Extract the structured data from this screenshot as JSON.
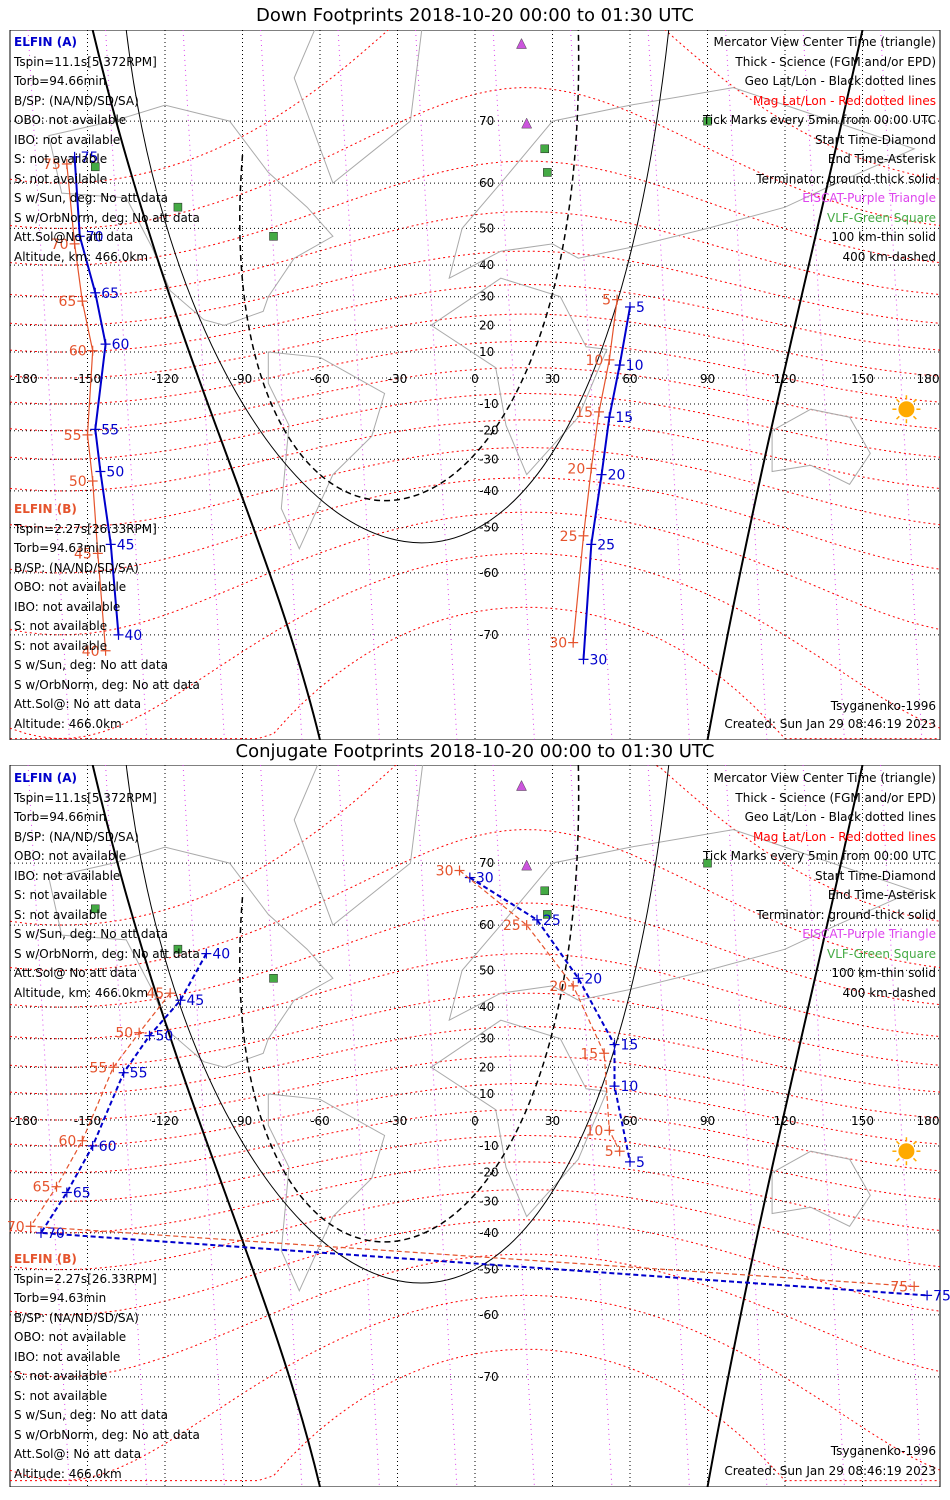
{
  "panels": [
    {
      "title": "Down Footprints 2018-10-20 00:00 to 01:30 UTC",
      "elfin_a": {
        "header": "ELFIN (A)",
        "lines": [
          "Tspin=11.1s[5.372RPM]",
          "Torb=94.66min",
          "B/SP: (NA/ND/SD/SA)",
          "OBO: not available",
          "IBO: not available",
          "S: not available",
          "S: not available",
          "S w/Sun, deg: No att data",
          "S w/OrbNorm, deg: No att data",
          "Att.Sol@No att data",
          "Altitude, km: 466.0km"
        ]
      },
      "elfin_b": {
        "header": "ELFIN (B)",
        "lines": [
          "Tspin=2.27s[26.33RPM]",
          "Torb=94.63min",
          "B/SP: (NA/ND/SD/SA)",
          "OBO: not available",
          "IBO: not available",
          "S: not available",
          "S: not available",
          "S w/Sun, deg: No att data",
          "S w/OrbNorm, deg: No att data",
          "Att.Sol@: No att data",
          "Altitude: 466.0km"
        ]
      },
      "model": "Tsyganenko-1996",
      "created": "Created: Sun Jan 29 08:46:19 2023"
    },
    {
      "title": "Conjugate Footprints 2018-10-20 00:00 to 01:30 UTC",
      "elfin_a": {
        "header": "ELFIN (A)",
        "lines": [
          "Tspin=11.1s[5.372RPM]",
          "Torb=94.66min",
          "B/SP: (NA/ND/SD/SA)",
          "OBO: not available",
          "IBO: not available",
          "S: not available",
          "S: not available",
          "S w/Sun, deg: No att data",
          "S w/OrbNorm, deg: No att data",
          "Att.Sol@ No att data",
          "Altitude, km: 466.0km"
        ]
      },
      "elfin_b": {
        "header": "ELFIN (B)",
        "lines": [
          "Tspin=2.27s[26.33RPM]",
          "Torb=94.63min",
          "B/SP: (NA/ND/SD/SA)",
          "OBO: not available",
          "IBO: not available",
          "S: not available",
          "S: not available",
          "S w/Sun, deg: No att data",
          "S w/OrbNorm, deg: No att data",
          "Att.Sol@: No att data",
          "Altitude: 466.0km"
        ]
      },
      "model": "Tsyganenko-1996",
      "created": "Created: Sun Jan 29 08:46:19 2023"
    }
  ],
  "legend": [
    {
      "text": "Mercator View Center Time (triangle)",
      "color": "#000000"
    },
    {
      "text": "Thick - Science (FGM and/or EPD)",
      "color": "#000000"
    },
    {
      "text": "Geo Lat/Lon - Black dotted lines",
      "color": "#000000"
    },
    {
      "text": "Mag Lat/Lon - Red dotted lines",
      "color": "#ff0000"
    },
    {
      "text": "Tick Marks every 5min from 00:00 UTC",
      "color": "#000000"
    },
    {
      "text": "Start Time-Diamond",
      "color": "#000000"
    },
    {
      "text": "End Time-Asterisk",
      "color": "#000000"
    },
    {
      "text": "Terminator: ground-thick solid",
      "color": "#000000"
    },
    {
      "text": "EISCAT-Purple Triangle",
      "color": "#dd44ee"
    },
    {
      "text": "VLF-Green Square",
      "color": "#44aa44"
    },
    {
      "text": "100 km-thin solid",
      "color": "#000000"
    },
    {
      "text": "400 km-dashed",
      "color": "#000000"
    }
  ],
  "colors": {
    "elfin_a": "#0000cc",
    "elfin_b": "#e5532c",
    "mag_grid": "#ff0000",
    "geo_grid": "#000000",
    "eiscat": "#cc55dd",
    "vlf": "#44aa44",
    "sun": "#ffaa00"
  },
  "map": {
    "lon_range": [
      -180,
      180
    ],
    "lon_ticks": [
      -180,
      -150,
      -120,
      -90,
      -60,
      -30,
      0,
      30,
      60,
      90,
      120,
      150,
      180
    ],
    "lon_tick_labels": [
      "-180",
      "-150",
      "-120",
      "-90",
      "-60",
      "-30",
      "0",
      "30",
      "60",
      "90",
      "120",
      "150",
      "180"
    ],
    "lat_ticks": [
      70,
      60,
      50,
      40,
      30,
      20,
      10,
      -10,
      -20,
      -30,
      -40,
      -50,
      -60,
      -70
    ],
    "lat_tick_labels": [
      "70",
      "60",
      "50",
      "40",
      "30",
      "20",
      "10",
      "-10",
      "-20",
      "-30",
      "-40",
      "-50",
      "-60",
      "-70"
    ],
    "projection": "mercator",
    "grid": true
  },
  "chart_data": [
    {
      "type": "scatter",
      "title": "Down Footprints 2018-10-20 00:00 to 01:30 UTC",
      "series": [
        {
          "name": "ELFIN (A)",
          "ticks_min": [
            75,
            70,
            65,
            60,
            55,
            50,
            45,
            40
          ],
          "lon": [
            -155,
            -153,
            -147,
            -143,
            -147,
            -145,
            -141,
            -138
          ],
          "lat": [
            64.7,
            48.0,
            31.3,
            13.0,
            -19.5,
            -34.0,
            -54.0,
            -70.0
          ],
          "ticks_min_2": [
            5,
            10,
            15,
            20,
            25,
            30
          ],
          "lon_2": [
            60.0,
            56.0,
            52.0,
            49.0,
            45.0,
            42.0
          ],
          "lat_2": [
            26.5,
            5.0,
            -15.0,
            -35.0,
            -54.0,
            -73.0
          ]
        },
        {
          "name": "ELFIN (B)",
          "ticks_min": [
            75,
            70,
            65,
            60,
            55,
            50,
            45,
            40
          ],
          "lon": [
            -158,
            -155,
            -152,
            -148,
            -150,
            -148,
            -146,
            -143
          ],
          "lat": [
            63.5,
            46.0,
            28.5,
            10.5,
            -21.5,
            -37.0,
            -56.0,
            -72.0
          ],
          "ticks_min_2": [
            5,
            10,
            15,
            20,
            25,
            30
          ],
          "lon_2": [
            55.0,
            52.0,
            48.0,
            45.0,
            42.0,
            38.0
          ],
          "lat_2": [
            29.0,
            7.0,
            -13.0,
            -33.0,
            -52.0,
            -71.0
          ]
        }
      ]
    },
    {
      "type": "scatter",
      "title": "Conjugate Footprints 2018-10-20 00:00 to 01:30 UTC",
      "series": [
        {
          "name": "ELFIN (A)",
          "ticks_min": [
            30,
            25,
            20,
            15,
            10,
            5
          ],
          "lon": [
            -2.0,
            24.0,
            40.0,
            54.0,
            54.0,
            60.0
          ],
          "lat": [
            68.0,
            61.0,
            48.0,
            28.0,
            13.0,
            -16.0
          ],
          "ticks_min_2": [
            40,
            45,
            50,
            55,
            60,
            65,
            70,
            75
          ],
          "lon_2": [
            -104.0,
            -114.0,
            -126.0,
            -136.0,
            -148.0,
            -158.0,
            -168.0,
            175.0
          ],
          "lat_2": [
            54.0,
            42.0,
            31.0,
            18.0,
            -10.0,
            -27.0,
            -40.0,
            -56.0
          ]
        },
        {
          "name": "ELFIN (B)",
          "ticks_min": [
            30,
            25,
            20,
            15,
            10,
            5
          ],
          "lon": [
            -6.0,
            20.0,
            38.0,
            50.0,
            52.0,
            56.0
          ],
          "lat": [
            69.0,
            60.0,
            46.0,
            25.0,
            -4.0,
            -12.0
          ],
          "ticks_min_2": [
            45,
            50,
            55,
            60,
            65,
            70,
            75
          ],
          "lon_2": [
            -118.0,
            -130.0,
            -140.0,
            -152.0,
            -162.0,
            -172.0,
            170.0
          ],
          "lat_2": [
            44.0,
            32.0,
            20.0,
            -8.0,
            -25.0,
            -38.0,
            -54.0
          ]
        }
      ]
    }
  ]
}
